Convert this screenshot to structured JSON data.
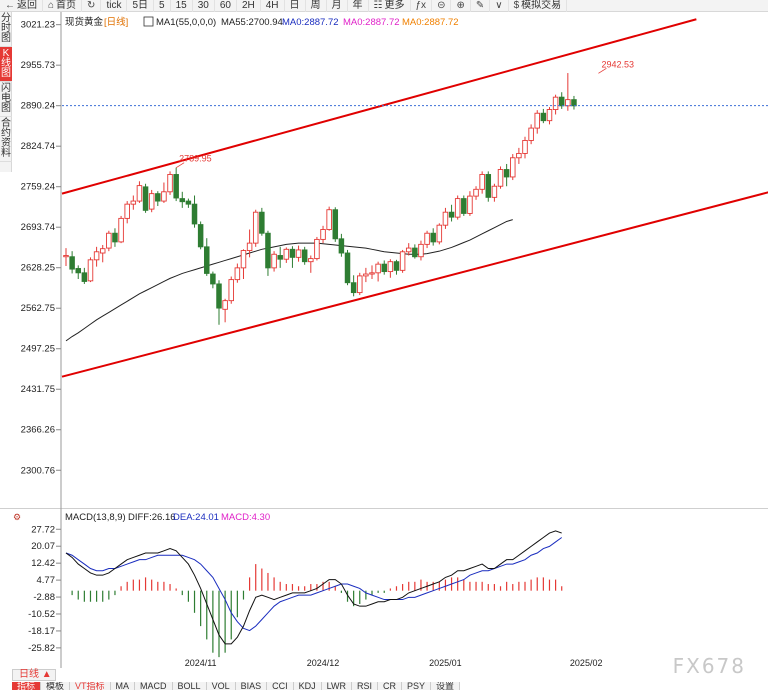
{
  "toolbar": {
    "items": [
      {
        "name": "back-button",
        "icon": "back-arrow-icon",
        "glyph": "←",
        "label": "返回"
      },
      {
        "name": "home-button",
        "icon": "home-icon",
        "glyph": "⌂",
        "label": "首页"
      },
      {
        "name": "refresh-button",
        "icon": "refresh-icon",
        "glyph": "↻",
        "label": ""
      },
      {
        "name": "tick-button",
        "icon": "",
        "glyph": "",
        "label": "tick"
      },
      {
        "name": "period-5d-button",
        "icon": "",
        "glyph": "",
        "label": "5日"
      },
      {
        "name": "period-5m-button",
        "icon": "",
        "glyph": "",
        "label": "5"
      },
      {
        "name": "period-15m-button",
        "icon": "",
        "glyph": "",
        "label": "15"
      },
      {
        "name": "period-30m-button",
        "icon": "",
        "glyph": "",
        "label": "30"
      },
      {
        "name": "period-60m-button",
        "icon": "",
        "glyph": "",
        "label": "60"
      },
      {
        "name": "period-2h-button",
        "icon": "",
        "glyph": "",
        "label": "2H"
      },
      {
        "name": "period-4h-button",
        "icon": "",
        "glyph": "",
        "label": "4H"
      },
      {
        "name": "period-day-button",
        "icon": "",
        "glyph": "",
        "label": "日"
      },
      {
        "name": "period-week-button",
        "icon": "",
        "glyph": "",
        "label": "周"
      },
      {
        "name": "period-month-button",
        "icon": "",
        "glyph": "",
        "label": "月"
      },
      {
        "name": "period-year-button",
        "icon": "",
        "glyph": "",
        "label": "年"
      },
      {
        "name": "more-button",
        "icon": "grid-icon",
        "glyph": "☷",
        "label": "更多"
      },
      {
        "name": "formula-button",
        "icon": "formula-icon",
        "glyph": "ƒx",
        "label": ""
      },
      {
        "name": "zoom-out-button",
        "icon": "zoom-out-icon",
        "glyph": "⊝",
        "label": ""
      },
      {
        "name": "zoom-in-button",
        "icon": "zoom-in-icon",
        "glyph": "⊕",
        "label": ""
      },
      {
        "name": "draw-button",
        "icon": "pencil-icon",
        "glyph": "✎",
        "label": ""
      },
      {
        "name": "settings-button",
        "icon": "chevron-icon",
        "glyph": "∨",
        "label": ""
      },
      {
        "name": "simulated-trade-button",
        "icon": "dollar-icon",
        "glyph": "$",
        "label": "模拟交易"
      }
    ]
  },
  "sidetabs": [
    {
      "label": "分时图",
      "active": false
    },
    {
      "label": "K线图",
      "active": true
    },
    {
      "label": "闪电图",
      "active": false
    },
    {
      "label": "合约资料",
      "active": false
    }
  ],
  "header": {
    "name": "现货黄金",
    "period": "[日线]",
    "ma1": "MA1(55,0,0,0)",
    "ma55": "MA55:2700.94",
    "ma0a": "MA0:2887.72",
    "ma0b": "MA0:2887.72",
    "ma0c": "MA0:2887.72"
  },
  "macd_header": {
    "label": "MACD(13,8,9)",
    "diff": "DIFF:26.16",
    "dea": "DEA:24.01",
    "macd": "MACD:4.30"
  },
  "bottom": {
    "period_tab": "日线 ▲",
    "indicator_tabs": [
      "指标",
      "模板",
      "VT指标",
      "MA",
      "MACD",
      "BOLL",
      "VOL",
      "BIAS",
      "CCI",
      "KDJ",
      "LWR",
      "RSI",
      "CR",
      "PSY",
      "设置"
    ]
  },
  "watermark": "FX678",
  "colors": {
    "up": "#e53935",
    "down": "#2e7d32",
    "ma55": "#222222",
    "channel": "#e00000",
    "diff": "#111111",
    "dea": "#1a2dbf",
    "current_price_line": "#3d6fd6",
    "ma0": "#1a2dbf",
    "ma0_pink": "#e020c8",
    "ma0_orange": "#f08000"
  },
  "chart_data": [
    {
      "type": "candlestick",
      "title": "现货黄金 [日线]",
      "y_ticks": [
        "3021.23",
        "2955.73",
        "2890.24",
        "2824.74",
        "2759.24",
        "2693.74",
        "2628.25",
        "2562.75",
        "2497.25",
        "2431.75",
        "2366.26",
        "2300.76"
      ],
      "ylim": [
        2236.5,
        3032
      ],
      "x_ticks": [
        "2024/11",
        "2024/12",
        "2025/01",
        "2025/02"
      ],
      "x_tick_index": [
        22,
        42,
        62,
        85
      ],
      "current_price": 2890.24,
      "annotations": [
        {
          "label": "2789.95",
          "index": 18,
          "value": 2789.95
        },
        {
          "label": "2942.53",
          "index": 87,
          "value": 2942.53
        }
      ],
      "channel_lines": [
        {
          "from": [
            0,
            2748
          ],
          "to": [
            103,
            3030
          ]
        },
        {
          "from": [
            0,
            2452
          ],
          "to": [
            117,
            2756
          ]
        }
      ],
      "ohlc": [
        [
          2646,
          2660,
          2631,
          2648
        ],
        [
          2646,
          2655,
          2619,
          2626
        ],
        [
          2627,
          2632,
          2610,
          2620
        ],
        [
          2620,
          2628,
          2602,
          2606
        ],
        [
          2607,
          2645,
          2605,
          2641
        ],
        [
          2641,
          2662,
          2630,
          2654
        ],
        [
          2652,
          2665,
          2637,
          2659
        ],
        [
          2660,
          2688,
          2655,
          2684
        ],
        [
          2684,
          2692,
          2662,
          2670
        ],
        [
          2670,
          2712,
          2668,
          2708
        ],
        [
          2708,
          2736,
          2700,
          2731
        ],
        [
          2731,
          2745,
          2722,
          2736
        ],
        [
          2736,
          2768,
          2733,
          2761
        ],
        [
          2759,
          2764,
          2717,
          2721
        ],
        [
          2723,
          2754,
          2718,
          2748
        ],
        [
          2748,
          2752,
          2728,
          2736
        ],
        [
          2736,
          2766,
          2733,
          2751
        ],
        [
          2751,
          2784,
          2746,
          2779
        ],
        [
          2779,
          2790,
          2736,
          2741
        ],
        [
          2740,
          2751,
          2725,
          2735
        ],
        [
          2736,
          2740,
          2725,
          2731
        ],
        [
          2731,
          2745,
          2693,
          2699
        ],
        [
          2698,
          2703,
          2658,
          2662
        ],
        [
          2662,
          2676,
          2615,
          2619
        ],
        [
          2618,
          2622,
          2595,
          2602
        ],
        [
          2602,
          2608,
          2536,
          2563
        ],
        [
          2561,
          2578,
          2540,
          2575
        ],
        [
          2575,
          2614,
          2570,
          2609
        ],
        [
          2609,
          2635,
          2604,
          2628
        ],
        [
          2628,
          2658,
          2610,
          2656
        ],
        [
          2656,
          2690,
          2645,
          2668
        ],
        [
          2668,
          2722,
          2662,
          2718
        ],
        [
          2718,
          2725,
          2680,
          2684
        ],
        [
          2684,
          2688,
          2615,
          2628
        ],
        [
          2628,
          2655,
          2622,
          2650
        ],
        [
          2648,
          2662,
          2628,
          2642
        ],
        [
          2642,
          2661,
          2636,
          2658
        ],
        [
          2658,
          2663,
          2628,
          2645
        ],
        [
          2645,
          2664,
          2638,
          2657
        ],
        [
          2657,
          2662,
          2633,
          2638
        ],
        [
          2638,
          2648,
          2620,
          2643
        ],
        [
          2643,
          2678,
          2640,
          2674
        ],
        [
          2674,
          2696,
          2668,
          2690
        ],
        [
          2690,
          2727,
          2688,
          2722
        ],
        [
          2722,
          2726,
          2670,
          2675
        ],
        [
          2675,
          2683,
          2646,
          2652
        ],
        [
          2652,
          2657,
          2600,
          2604
        ],
        [
          2604,
          2616,
          2582,
          2588
        ],
        [
          2588,
          2620,
          2584,
          2615
        ],
        [
          2615,
          2628,
          2605,
          2618
        ],
        [
          2618,
          2632,
          2610,
          2620
        ],
        [
          2620,
          2638,
          2606,
          2634
        ],
        [
          2634,
          2640,
          2617,
          2622
        ],
        [
          2622,
          2642,
          2612,
          2638
        ],
        [
          2638,
          2641,
          2617,
          2624
        ],
        [
          2624,
          2657,
          2620,
          2654
        ],
        [
          2654,
          2668,
          2648,
          2660
        ],
        [
          2660,
          2666,
          2643,
          2646
        ],
        [
          2646,
          2672,
          2640,
          2666
        ],
        [
          2666,
          2688,
          2660,
          2684
        ],
        [
          2684,
          2692,
          2664,
          2670
        ],
        [
          2670,
          2700,
          2666,
          2697
        ],
        [
          2697,
          2725,
          2691,
          2718
        ],
        [
          2718,
          2730,
          2703,
          2710
        ],
        [
          2710,
          2745,
          2706,
          2740
        ],
        [
          2740,
          2745,
          2712,
          2716
        ],
        [
          2716,
          2752,
          2712,
          2744
        ],
        [
          2744,
          2760,
          2738,
          2755
        ],
        [
          2755,
          2784,
          2748,
          2779
        ],
        [
          2779,
          2784,
          2735,
          2742
        ],
        [
          2742,
          2764,
          2735,
          2760
        ],
        [
          2760,
          2792,
          2756,
          2787
        ],
        [
          2787,
          2796,
          2760,
          2775
        ],
        [
          2775,
          2812,
          2770,
          2806
        ],
        [
          2806,
          2822,
          2796,
          2813
        ],
        [
          2813,
          2840,
          2805,
          2834
        ],
        [
          2834,
          2860,
          2828,
          2854
        ],
        [
          2854,
          2883,
          2845,
          2878
        ],
        [
          2878,
          2885,
          2862,
          2866
        ],
        [
          2866,
          2888,
          2860,
          2884
        ],
        [
          2884,
          2908,
          2876,
          2904
        ],
        [
          2904,
          2912,
          2885,
          2890
        ],
        [
          2890,
          2943,
          2882,
          2900
        ],
        [
          2900,
          2906,
          2884,
          2890
        ]
      ],
      "ma55": [
        2510,
        2517,
        2523,
        2530,
        2537,
        2544,
        2550,
        2556,
        2562,
        2568,
        2574,
        2580,
        2586,
        2591,
        2596,
        2601,
        2606,
        2611,
        2615,
        2619,
        2622,
        2625,
        2628,
        2631,
        2634,
        2637,
        2640,
        2643,
        2646,
        2649,
        2652,
        2655,
        2658,
        2660,
        2662,
        2664,
        2666,
        2667,
        2668,
        2668,
        2668,
        2668,
        2667,
        2666,
        2665,
        2664,
        2663,
        2662,
        2661,
        2660,
        2658,
        2656,
        2654,
        2653,
        2652,
        2651,
        2650,
        2650,
        2650,
        2651,
        2653,
        2655,
        2658,
        2661,
        2665,
        2669,
        2673,
        2678,
        2683,
        2688,
        2693,
        2698,
        2703,
        2706
      ],
      "ma55_start_index": 0
    },
    {
      "type": "macd",
      "y_ticks": [
        "27.72",
        "20.07",
        "12.42",
        "4.77",
        "-2.88",
        "-10.52",
        "-18.17",
        "-25.82"
      ],
      "ylim": [
        -34,
        31
      ],
      "diff": [
        17,
        15,
        12,
        10,
        8,
        7,
        7,
        8,
        10,
        12,
        14,
        15,
        16,
        17,
        17,
        17,
        18,
        19,
        18,
        15,
        12,
        7,
        1,
        -6,
        -13,
        -20,
        -24,
        -24,
        -21,
        -16,
        -9,
        -3,
        -2,
        -3,
        -4,
        -3,
        -2,
        -1,
        -1,
        -1,
        0,
        1,
        3,
        5,
        5,
        3,
        -2,
        -6,
        -7,
        -7,
        -6,
        -5,
        -5,
        -4,
        -4,
        -3,
        -1,
        0,
        1,
        2,
        3,
        4,
        6,
        7,
        9,
        9,
        10,
        11,
        12,
        10,
        10,
        12,
        14,
        14,
        16,
        18,
        20,
        22,
        24,
        26,
        27,
        26
      ],
      "dea": [
        17,
        16,
        14,
        12,
        10,
        9,
        9,
        10,
        10,
        11,
        12,
        13,
        14,
        14,
        15,
        16,
        16,
        16,
        16,
        16,
        15,
        14,
        12,
        9,
        6,
        1,
        -4,
        -10,
        -14,
        -17,
        -18,
        -16,
        -13,
        -10,
        -7,
        -5,
        -4,
        -3,
        -2,
        -2,
        -2,
        -1,
        0,
        1,
        2,
        3,
        3,
        2,
        1,
        -1,
        -2,
        -3,
        -4,
        -4,
        -4,
        -4,
        -3,
        -3,
        -2,
        -1,
        0,
        1,
        2,
        3,
        4,
        5,
        7,
        8,
        9,
        9,
        10,
        11,
        12,
        12,
        13,
        14,
        16,
        17,
        19,
        20,
        22,
        24
      ],
      "macd_hist": [
        0,
        -2,
        -4,
        -5,
        -5,
        -5,
        -5,
        -4,
        -2,
        2,
        4,
        5,
        5,
        6,
        5,
        4,
        4,
        3,
        1,
        -2,
        -5,
        -10,
        -16,
        -22,
        -28,
        -30,
        -28,
        -22,
        -12,
        -4,
        6,
        12,
        10,
        8,
        6,
        4,
        3,
        3,
        2,
        2,
        3,
        3,
        4,
        4,
        2,
        -1,
        -5,
        -7,
        -6,
        -4,
        -2,
        -1,
        -1,
        1,
        2,
        3,
        4,
        4,
        5,
        4,
        4,
        4,
        5,
        6,
        6,
        5,
        4,
        4,
        4,
        3,
        3,
        2,
        4,
        3,
        4,
        4,
        5,
        6,
        6,
        5,
        5,
        2
      ]
    }
  ]
}
